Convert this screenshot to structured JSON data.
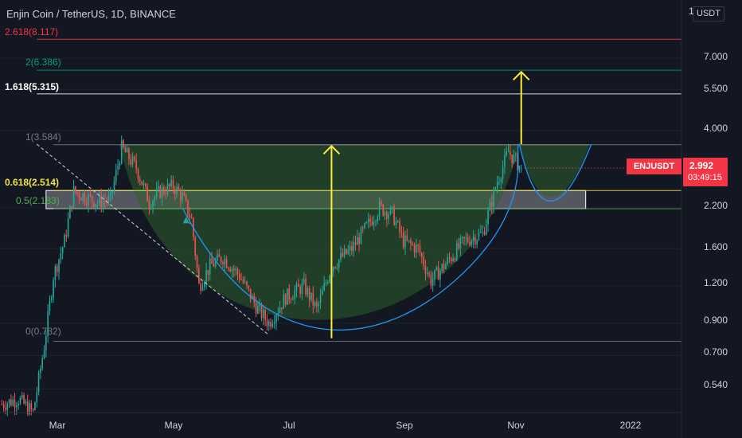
{
  "header": {
    "title": "Enjin Coin / TetherUS, 1D, BINANCE"
  },
  "price_axis": {
    "currency": "USDT",
    "currency_prefix": "1",
    "labels": [
      "7.000",
      "5.500",
      "4.000",
      "2.200",
      "1.600",
      "1.200",
      "0.900",
      "0.700",
      "0.540"
    ]
  },
  "time_axis": {
    "labels": [
      "Mar",
      "May",
      "Jul",
      "Sep",
      "Nov",
      "2022"
    ]
  },
  "last_price": {
    "symbol": "ENJUSDT",
    "price": "2.992",
    "countdown": "03:49:15"
  },
  "colors": {
    "background": "#131722",
    "up_candle": "#26a69a",
    "down_candle": "#ef5350",
    "fib_2618": "#f23645",
    "fib_2": "#089981",
    "fib_1618": "#ffffff",
    "fib_1": "#787b86",
    "fib_0618": "#f0e442",
    "fib_05": "#4caf50",
    "fib_0": "#787b86",
    "cup_curve": "#2196f3",
    "arrows": "#ffeb3b",
    "cup_fill": "#2e5e2e"
  },
  "chart_data": {
    "type": "candlestick",
    "title": "Enjin Coin / TetherUS, 1D, BINANCE",
    "scale": "log",
    "ylim": [
      0.45,
      11
    ],
    "x_range": [
      "2021-01-31",
      "2022-02-05"
    ],
    "x_ticks": [
      "Mar",
      "May",
      "Jul",
      "Sep",
      "Nov",
      "2022"
    ],
    "y_ticks": [
      7.0,
      5.5,
      4.0,
      2.2,
      1.6,
      1.2,
      0.9,
      0.7,
      0.54
    ],
    "fib_levels": [
      {
        "label": "2.618(8.117)",
        "value": 8.117
      },
      {
        "label": "2(6.386)",
        "value": 6.386
      },
      {
        "label": "1.618(5.315)",
        "value": 5.315
      },
      {
        "label": "1(3.584)",
        "value": 3.584
      },
      {
        "label": "0.618(2.514)",
        "value": 2.514
      },
      {
        "label": "0.5(2.183)",
        "value": 2.183
      },
      {
        "label": "0(0.782)",
        "value": 0.782
      }
    ],
    "price_path": [
      [
        "2021-02-01",
        0.48
      ],
      [
        "2021-02-10",
        0.5
      ],
      [
        "2021-02-18",
        0.45
      ],
      [
        "2021-02-24",
        0.75
      ],
      [
        "2021-03-01",
        1.3
      ],
      [
        "2021-03-07",
        1.7
      ],
      [
        "2021-03-12",
        2.5
      ],
      [
        "2021-03-18",
        2.4
      ],
      [
        "2021-03-25",
        2.3
      ],
      [
        "2021-04-01",
        2.35
      ],
      [
        "2021-04-07",
        3.5
      ],
      [
        "2021-04-15",
        3.0
      ],
      [
        "2021-04-22",
        2.3
      ],
      [
        "2021-04-28",
        2.5
      ],
      [
        "2021-05-05",
        2.6
      ],
      [
        "2021-05-10",
        2.4
      ],
      [
        "2021-05-15",
        2.0
      ],
      [
        "2021-05-19",
        1.2
      ],
      [
        "2021-05-25",
        1.4
      ],
      [
        "2021-06-01",
        1.5
      ],
      [
        "2021-06-10",
        1.3
      ],
      [
        "2021-06-20",
        1.0
      ],
      [
        "2021-06-26",
        0.9
      ],
      [
        "2021-07-05",
        1.1
      ],
      [
        "2021-07-15",
        1.2
      ],
      [
        "2021-07-22",
        1.0
      ],
      [
        "2021-07-30",
        1.4
      ],
      [
        "2021-08-10",
        1.6
      ],
      [
        "2021-08-18",
        1.9
      ],
      [
        "2021-08-25",
        2.2
      ],
      [
        "2021-09-01",
        2.1
      ],
      [
        "2021-09-07",
        1.7
      ],
      [
        "2021-09-15",
        1.6
      ],
      [
        "2021-09-22",
        1.25
      ],
      [
        "2021-10-01",
        1.45
      ],
      [
        "2021-10-10",
        1.7
      ],
      [
        "2021-10-20",
        1.8
      ],
      [
        "2021-10-28",
        2.7
      ],
      [
        "2021-11-03",
        3.4
      ],
      [
        "2021-11-10",
        2.99
      ]
    ],
    "last_price": 2.992
  }
}
